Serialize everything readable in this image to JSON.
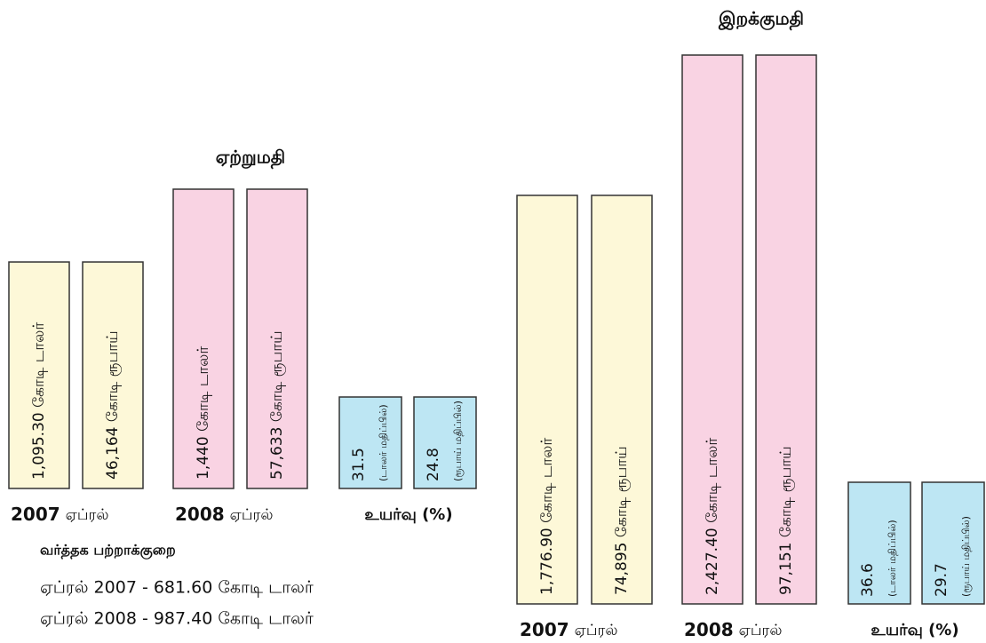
{
  "export": {
    "title": "ஏற்றுமதி",
    "bars": [
      "1,095.30 கோடி டாலர்",
      "46,164 கோடி ரூபாய்",
      "1,440 கோடி டாலர்",
      "57,633 கோடி ரூபாய்"
    ],
    "years": [
      {
        "year": "2007",
        "month": "ஏப்ரல்"
      },
      {
        "year": "2008",
        "month": "ஏப்ரல்"
      }
    ],
    "growth_label": "உயர்வு (%)",
    "growth": [
      {
        "value": "31.5",
        "unit": "(டாலர் மதிப்பில்)"
      },
      {
        "value": "24.8",
        "unit": "(ரூபாய் மதிப்பில்)"
      }
    ]
  },
  "import": {
    "title": "இறக்குமதி",
    "bars": [
      "1,776.90 கோடி டாலர்",
      "74,895 கோடி ரூபாய்",
      "2,427.40 கோடி டாலர்",
      "97,151 கோடி ரூபாய்"
    ],
    "years": [
      {
        "year": "2007",
        "month": "ஏப்ரல்"
      },
      {
        "year": "2008",
        "month": "ஏப்ரல்"
      }
    ],
    "growth_label": "உயர்வு (%)",
    "growth": [
      {
        "value": "36.6",
        "unit": "(டாலர் மதிப்பில்)"
      },
      {
        "value": "29.7",
        "unit": "(ரூபாய் மதிப்பில்)"
      }
    ]
  },
  "trade_deficit": {
    "title": "வர்த்தக பற்றாக்குறை",
    "lines": [
      "ஏப்ரல் 2007 - 681.60 கோடி டாலர்",
      "ஏப்ரல் 2008 - 987.40 கோடி டாலர்"
    ]
  }
}
